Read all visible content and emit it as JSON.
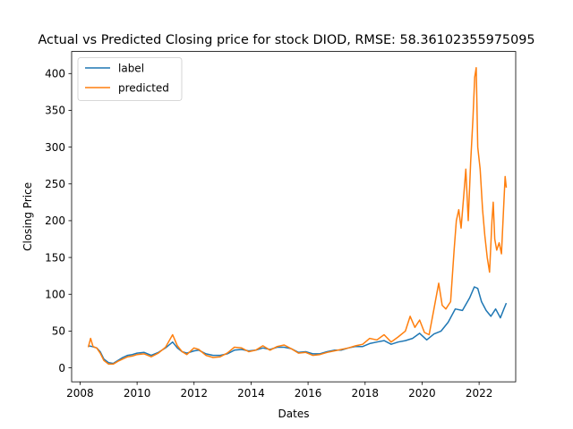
{
  "chart_data": {
    "type": "line",
    "title": "Actual vs Predicted Closing price for stock DIOD, RMSE: 58.36102355975095",
    "xlabel": "Dates",
    "ylabel": "Closing Price",
    "xlim": [
      "2007-09-15",
      "2023-04-15"
    ],
    "ylim": [
      -19,
      430
    ],
    "xticks": [
      "2008",
      "2010",
      "2012",
      "2014",
      "2016",
      "2018",
      "2020",
      "2022"
    ],
    "yticks": [
      0,
      50,
      100,
      150,
      200,
      250,
      300,
      350,
      400
    ],
    "grid": false,
    "legend": "upper-left",
    "series": [
      {
        "name": "label",
        "color": "#1f77b4",
        "points": [
          [
            "2008-04-15",
            30
          ],
          [
            "2008-06-01",
            29
          ],
          [
            "2008-08-01",
            27
          ],
          [
            "2008-09-15",
            22
          ],
          [
            "2008-11-01",
            12
          ],
          [
            "2009-01-01",
            7
          ],
          [
            "2009-03-01",
            6
          ],
          [
            "2009-05-01",
            10
          ],
          [
            "2009-07-01",
            14
          ],
          [
            "2009-09-01",
            17
          ],
          [
            "2009-11-01",
            18
          ],
          [
            "2010-01-01",
            20
          ],
          [
            "2010-04-01",
            21
          ],
          [
            "2010-07-01",
            17
          ],
          [
            "2010-10-01",
            21
          ],
          [
            "2011-01-01",
            27
          ],
          [
            "2011-04-01",
            35
          ],
          [
            "2011-06-01",
            27
          ],
          [
            "2011-08-01",
            22
          ],
          [
            "2011-10-01",
            20
          ],
          [
            "2012-01-01",
            23
          ],
          [
            "2012-03-01",
            24
          ],
          [
            "2012-06-01",
            19
          ],
          [
            "2012-09-01",
            17
          ],
          [
            "2012-12-01",
            17
          ],
          [
            "2013-03-01",
            19
          ],
          [
            "2013-06-01",
            24
          ],
          [
            "2013-09-01",
            25
          ],
          [
            "2013-12-01",
            23
          ],
          [
            "2014-03-01",
            24
          ],
          [
            "2014-06-01",
            27
          ],
          [
            "2014-09-01",
            25
          ],
          [
            "2014-12-01",
            28
          ],
          [
            "2015-03-01",
            28
          ],
          [
            "2015-06-01",
            26
          ],
          [
            "2015-09-01",
            21
          ],
          [
            "2015-12-01",
            22
          ],
          [
            "2016-03-01",
            19
          ],
          [
            "2016-06-01",
            19
          ],
          [
            "2016-09-01",
            22
          ],
          [
            "2016-12-01",
            24
          ],
          [
            "2017-03-01",
            24
          ],
          [
            "2017-06-01",
            27
          ],
          [
            "2017-09-01",
            29
          ],
          [
            "2017-12-01",
            29
          ],
          [
            "2018-03-01",
            33
          ],
          [
            "2018-06-01",
            35
          ],
          [
            "2018-09-01",
            37
          ],
          [
            "2018-12-01",
            32
          ],
          [
            "2019-03-01",
            35
          ],
          [
            "2019-06-01",
            37
          ],
          [
            "2019-09-01",
            40
          ],
          [
            "2019-12-01",
            47
          ],
          [
            "2020-03-01",
            38
          ],
          [
            "2020-06-01",
            46
          ],
          [
            "2020-09-01",
            50
          ],
          [
            "2020-12-01",
            62
          ],
          [
            "2021-03-01",
            80
          ],
          [
            "2021-06-01",
            78
          ],
          [
            "2021-09-01",
            95
          ],
          [
            "2021-11-01",
            110
          ],
          [
            "2021-12-15",
            108
          ],
          [
            "2022-02-01",
            90
          ],
          [
            "2022-04-01",
            78
          ],
          [
            "2022-06-01",
            70
          ],
          [
            "2022-08-01",
            80
          ],
          [
            "2022-10-01",
            68
          ],
          [
            "2022-11-15",
            80
          ],
          [
            "2022-12-15",
            88
          ]
        ]
      },
      {
        "name": "predicted",
        "color": "#ff7f0e",
        "points": [
          [
            "2008-04-15",
            28
          ],
          [
            "2008-05-15",
            40
          ],
          [
            "2008-06-15",
            29
          ],
          [
            "2008-08-01",
            27
          ],
          [
            "2008-09-15",
            20
          ],
          [
            "2008-11-01",
            10
          ],
          [
            "2009-01-01",
            5
          ],
          [
            "2009-03-01",
            5
          ],
          [
            "2009-05-01",
            9
          ],
          [
            "2009-07-01",
            12
          ],
          [
            "2009-09-01",
            15
          ],
          [
            "2009-11-01",
            16
          ],
          [
            "2010-01-01",
            18
          ],
          [
            "2010-04-01",
            19
          ],
          [
            "2010-07-01",
            15
          ],
          [
            "2010-10-01",
            20
          ],
          [
            "2011-01-01",
            28
          ],
          [
            "2011-04-01",
            45
          ],
          [
            "2011-06-01",
            30
          ],
          [
            "2011-08-01",
            22
          ],
          [
            "2011-10-01",
            18
          ],
          [
            "2012-01-01",
            27
          ],
          [
            "2012-03-01",
            25
          ],
          [
            "2012-06-01",
            17
          ],
          [
            "2012-09-01",
            14
          ],
          [
            "2012-12-01",
            15
          ],
          [
            "2013-03-01",
            20
          ],
          [
            "2013-06-01",
            28
          ],
          [
            "2013-09-01",
            27
          ],
          [
            "2013-12-01",
            22
          ],
          [
            "2014-03-01",
            24
          ],
          [
            "2014-06-01",
            30
          ],
          [
            "2014-09-01",
            24
          ],
          [
            "2014-12-01",
            29
          ],
          [
            "2015-03-01",
            31
          ],
          [
            "2015-06-01",
            26
          ],
          [
            "2015-09-01",
            20
          ],
          [
            "2015-12-01",
            21
          ],
          [
            "2016-03-01",
            17
          ],
          [
            "2016-06-01",
            18
          ],
          [
            "2016-09-01",
            21
          ],
          [
            "2016-12-01",
            23
          ],
          [
            "2017-03-01",
            25
          ],
          [
            "2017-06-01",
            27
          ],
          [
            "2017-09-01",
            30
          ],
          [
            "2017-12-01",
            32
          ],
          [
            "2018-03-01",
            40
          ],
          [
            "2018-06-01",
            38
          ],
          [
            "2018-09-01",
            45
          ],
          [
            "2018-12-01",
            35
          ],
          [
            "2019-03-01",
            42
          ],
          [
            "2019-06-01",
            50
          ],
          [
            "2019-08-01",
            70
          ],
          [
            "2019-10-01",
            55
          ],
          [
            "2019-12-01",
            65
          ],
          [
            "2020-02-01",
            48
          ],
          [
            "2020-04-01",
            45
          ],
          [
            "2020-06-01",
            80
          ],
          [
            "2020-08-01",
            115
          ],
          [
            "2020-09-15",
            85
          ],
          [
            "2020-11-01",
            80
          ],
          [
            "2021-01-01",
            90
          ],
          [
            "2021-02-15",
            160
          ],
          [
            "2021-03-15",
            200
          ],
          [
            "2021-04-15",
            215
          ],
          [
            "2021-05-15",
            190
          ],
          [
            "2021-06-15",
            230
          ],
          [
            "2021-07-15",
            270
          ],
          [
            "2021-08-15",
            200
          ],
          [
            "2021-09-15",
            280
          ],
          [
            "2021-10-15",
            340
          ],
          [
            "2021-11-05",
            395
          ],
          [
            "2021-11-25",
            408
          ],
          [
            "2021-12-15",
            300
          ],
          [
            "2022-01-15",
            270
          ],
          [
            "2022-02-15",
            215
          ],
          [
            "2022-03-15",
            180
          ],
          [
            "2022-04-15",
            150
          ],
          [
            "2022-05-15",
            130
          ],
          [
            "2022-06-15",
            200
          ],
          [
            "2022-07-01",
            225
          ],
          [
            "2022-07-20",
            175
          ],
          [
            "2022-08-15",
            160
          ],
          [
            "2022-09-15",
            170
          ],
          [
            "2022-10-15",
            155
          ],
          [
            "2022-11-15",
            225
          ],
          [
            "2022-12-01",
            260
          ],
          [
            "2022-12-15",
            245
          ]
        ]
      }
    ]
  }
}
